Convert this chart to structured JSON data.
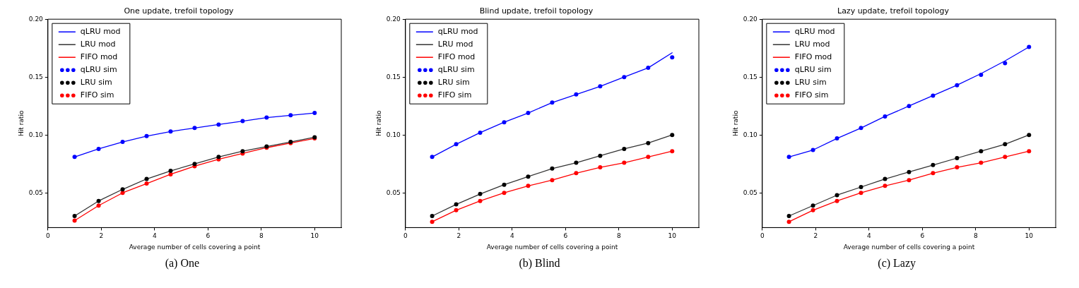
{
  "chart_data": [
    {
      "type": "line",
      "title": "One update, trefoil topology",
      "xlabel": "Average number of cells covering a point",
      "ylabel": "Hit ratio",
      "xlim": [
        0,
        11
      ],
      "ylim": [
        0.02,
        0.2
      ],
      "xticks": [
        0,
        2,
        4,
        6,
        8,
        10
      ],
      "yticks": [
        {
          "value": 0.05,
          "label": "0.05"
        },
        {
          "value": 0.1,
          "label": "0.10"
        },
        {
          "value": 0.15,
          "label": "0.15"
        },
        {
          "value": 0.2,
          "label": "0.20"
        }
      ],
      "legend": "top left",
      "annotations": [
        "(a) One"
      ],
      "x": [
        1,
        1.9,
        2.8,
        3.7,
        4.6,
        5.5,
        6.4,
        7.3,
        8.2,
        9.1,
        10
      ],
      "series": [
        {
          "name": "qLRU mod",
          "marker": "none",
          "line_style": "solid",
          "color": "#0000ff",
          "values": [
            0.081,
            0.088,
            0.094,
            0.099,
            0.103,
            0.106,
            0.109,
            0.112,
            0.115,
            0.117,
            0.119
          ]
        },
        {
          "name": "LRU mod",
          "marker": "none",
          "line_style": "solid",
          "color": "#333333",
          "values": [
            0.03,
            0.043,
            0.053,
            0.062,
            0.069,
            0.075,
            0.081,
            0.086,
            0.09,
            0.094,
            0.098
          ]
        },
        {
          "name": "FIFO mod",
          "marker": "none",
          "line_style": "solid",
          "color": "#ff0000",
          "values": [
            0.026,
            0.039,
            0.05,
            0.058,
            0.066,
            0.073,
            0.079,
            0.084,
            0.089,
            0.093,
            0.097
          ]
        },
        {
          "name": "qLRU sim",
          "type": "scatter",
          "marker": "circle",
          "color": "#0000ff",
          "values": [
            0.081,
            0.088,
            0.094,
            0.099,
            0.103,
            0.106,
            0.109,
            0.112,
            0.115,
            0.117,
            0.119
          ]
        },
        {
          "name": "LRU sim",
          "type": "scatter",
          "marker": "circle",
          "color": "#000000",
          "values": [
            0.03,
            0.043,
            0.053,
            0.062,
            0.069,
            0.075,
            0.081,
            0.086,
            0.09,
            0.094,
            0.098
          ]
        },
        {
          "name": "FIFO sim",
          "type": "scatter",
          "marker": "circle",
          "color": "#ff0000",
          "values": [
            0.026,
            0.039,
            0.05,
            0.058,
            0.066,
            0.073,
            0.079,
            0.084,
            0.089,
            0.093,
            0.097
          ]
        }
      ]
    },
    {
      "type": "line",
      "title": "Blind update, trefoil topology",
      "xlabel": "Average number of cells covering a point",
      "ylabel": "Hit ratio",
      "xlim": [
        0,
        11
      ],
      "ylim": [
        0.02,
        0.2
      ],
      "xticks": [
        0,
        2,
        4,
        6,
        8,
        10
      ],
      "yticks": [
        {
          "value": 0.05,
          "label": "0.05"
        },
        {
          "value": 0.1,
          "label": "0.10"
        },
        {
          "value": 0.15,
          "label": "0.15"
        },
        {
          "value": 0.2,
          "label": "0.20"
        }
      ],
      "legend": "top left",
      "annotations": [
        "(b) Blind"
      ],
      "x": [
        1,
        1.9,
        2.8,
        3.7,
        4.6,
        5.5,
        6.4,
        7.3,
        8.2,
        9.1,
        10
      ],
      "series": [
        {
          "name": "qLRU mod",
          "marker": "none",
          "line_style": "solid",
          "color": "#0000ff",
          "values": [
            0.081,
            0.092,
            0.102,
            0.111,
            0.119,
            0.128,
            0.135,
            0.142,
            0.15,
            0.158,
            0.171
          ]
        },
        {
          "name": "LRU mod",
          "marker": "none",
          "line_style": "solid",
          "color": "#333333",
          "values": [
            0.03,
            0.04,
            0.049,
            0.057,
            0.064,
            0.071,
            0.076,
            0.082,
            0.088,
            0.093,
            0.1
          ]
        },
        {
          "name": "FIFO mod",
          "marker": "none",
          "line_style": "solid",
          "color": "#ff0000",
          "values": [
            0.025,
            0.035,
            0.043,
            0.05,
            0.056,
            0.061,
            0.067,
            0.072,
            0.076,
            0.081,
            0.086
          ]
        },
        {
          "name": "qLRU sim",
          "type": "scatter",
          "marker": "circle",
          "color": "#0000ff",
          "values": [
            0.081,
            0.092,
            0.102,
            0.111,
            0.119,
            0.128,
            0.135,
            0.142,
            0.15,
            0.158,
            0.167
          ]
        },
        {
          "name": "LRU sim",
          "type": "scatter",
          "marker": "circle",
          "color": "#000000",
          "values": [
            0.03,
            0.04,
            0.049,
            0.057,
            0.064,
            0.071,
            0.076,
            0.082,
            0.088,
            0.093,
            0.1
          ]
        },
        {
          "name": "FIFO sim",
          "type": "scatter",
          "marker": "circle",
          "color": "#ff0000",
          "values": [
            0.025,
            0.035,
            0.043,
            0.05,
            0.056,
            0.061,
            0.067,
            0.072,
            0.076,
            0.081,
            0.086
          ]
        }
      ]
    },
    {
      "type": "line",
      "title": "Lazy update, trefoil topology",
      "xlabel": "Average number of cells covering a point",
      "ylabel": "Hit ratio",
      "xlim": [
        0,
        11
      ],
      "ylim": [
        0.02,
        0.2
      ],
      "xticks": [
        0,
        2,
        4,
        6,
        8,
        10
      ],
      "yticks": [
        {
          "value": 0.05,
          "label": "0.05"
        },
        {
          "value": 0.1,
          "label": "0.10"
        },
        {
          "value": 0.15,
          "label": "0.15"
        },
        {
          "value": 0.2,
          "label": "0.20"
        }
      ],
      "legend": "top left",
      "annotations": [
        "(c) Lazy"
      ],
      "x": [
        1,
        1.9,
        2.8,
        3.7,
        4.6,
        5.5,
        6.4,
        7.3,
        8.2,
        9.1,
        10
      ],
      "series": [
        {
          "name": "qLRU mod",
          "marker": "none",
          "line_style": "solid",
          "color": "#0000ff",
          "values": [
            0.081,
            0.087,
            0.097,
            0.106,
            0.116,
            0.125,
            0.134,
            0.143,
            0.153,
            0.164,
            0.176
          ]
        },
        {
          "name": "LRU mod",
          "marker": "none",
          "line_style": "solid",
          "color": "#333333",
          "values": [
            0.03,
            0.039,
            0.048,
            0.055,
            0.062,
            0.068,
            0.074,
            0.08,
            0.086,
            0.092,
            0.1
          ]
        },
        {
          "name": "FIFO mod",
          "marker": "none",
          "line_style": "solid",
          "color": "#ff0000",
          "values": [
            0.025,
            0.035,
            0.043,
            0.05,
            0.056,
            0.061,
            0.067,
            0.072,
            0.076,
            0.081,
            0.086
          ]
        },
        {
          "name": "qLRU sim",
          "type": "scatter",
          "marker": "circle",
          "color": "#0000ff",
          "values": [
            0.081,
            0.087,
            0.097,
            0.106,
            0.116,
            0.125,
            0.134,
            0.143,
            0.152,
            0.162,
            0.176
          ]
        },
        {
          "name": "LRU sim",
          "type": "scatter",
          "marker": "circle",
          "color": "#000000",
          "values": [
            0.03,
            0.039,
            0.048,
            0.055,
            0.062,
            0.068,
            0.074,
            0.08,
            0.086,
            0.092,
            0.1
          ]
        },
        {
          "name": "FIFO sim",
          "type": "scatter",
          "marker": "circle",
          "color": "#ff0000",
          "values": [
            0.025,
            0.035,
            0.043,
            0.05,
            0.056,
            0.061,
            0.067,
            0.072,
            0.076,
            0.081,
            0.086
          ]
        }
      ]
    }
  ]
}
